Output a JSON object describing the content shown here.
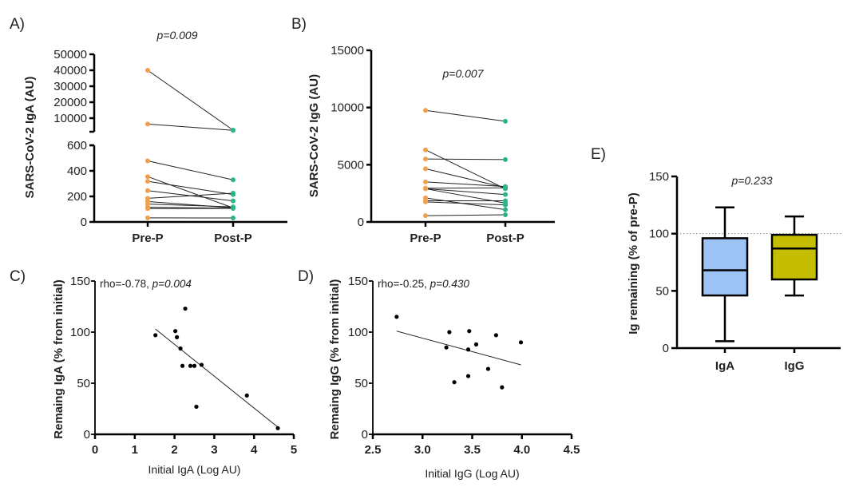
{
  "chart_data": [
    {
      "panel": "A)",
      "type": "line",
      "annotation": "p=0.009",
      "ylabel": "SARS-CoV-2 IgA (AU)",
      "categories": [
        "Pre-P",
        "Post-P"
      ],
      "y_axis_break": true,
      "y_ticks_lower": [
        "0",
        "200",
        "400",
        "600"
      ],
      "y_ticks_upper": [
        "10000",
        "20000",
        "30000",
        "40000",
        "50000"
      ],
      "pre": [
        40000,
        6300,
        478,
        355,
        318,
        245,
        185,
        160,
        140,
        115,
        105,
        32
      ],
      "post": [
        2500,
        2400,
        330,
        110,
        215,
        165,
        225,
        110,
        118,
        108,
        106,
        31
      ],
      "pre_color": "#f0a04b",
      "post_color": "#2db38a"
    },
    {
      "panel": "B)",
      "type": "line",
      "annotation": "p=0.007",
      "ylabel": "SARS-CoV-2 IgG (AU)",
      "categories": [
        "Pre-P",
        "Post-P"
      ],
      "ylim": [
        0,
        15000
      ],
      "y_ticks": [
        "0",
        "5000",
        "10000",
        "15000"
      ],
      "pre": [
        9750,
        6300,
        5500,
        4650,
        3500,
        2950,
        2900,
        2900,
        2100,
        1850,
        1750,
        550
      ],
      "post": [
        8800,
        2900,
        5450,
        3000,
        3100,
        2980,
        2400,
        1650,
        1070,
        1850,
        1490,
        630
      ],
      "pre_color": "#f0a04b",
      "post_color": "#2db38a"
    },
    {
      "panel": "C)",
      "type": "scatter",
      "annotation_plain": "rho=-0.78, ",
      "annotation_italic": "p=0.004",
      "xlabel": "Initial IgA  (Log AU)",
      "ylabel": "Remaing IgA  (% from initial)",
      "xlim": [
        0,
        5
      ],
      "ylim": [
        0,
        150
      ],
      "x_ticks": [
        "0",
        "1",
        "2",
        "3",
        "4",
        "5"
      ],
      "y_ticks": [
        "0",
        "50",
        "100",
        "150"
      ],
      "points": [
        [
          1.52,
          97
        ],
        [
          2.02,
          101
        ],
        [
          2.06,
          95
        ],
        [
          2.27,
          123
        ],
        [
          2.15,
          84
        ],
        [
          2.2,
          67
        ],
        [
          2.4,
          67
        ],
        [
          2.5,
          67
        ],
        [
          2.68,
          68
        ],
        [
          2.55,
          27
        ],
        [
          3.82,
          38
        ],
        [
          4.6,
          6
        ]
      ],
      "fit_line": [
        [
          1.52,
          103
        ],
        [
          4.6,
          7
        ]
      ]
    },
    {
      "panel": "D)",
      "type": "scatter",
      "annotation_plain": "rho=-0.25, ",
      "annotation_italic": "p=0.430",
      "xlabel": "Initial IgG  (Log AU)",
      "ylabel": "Remaing IgG  (% from initial)",
      "xlim": [
        2.5,
        4.5
      ],
      "ylim": [
        0,
        150
      ],
      "x_ticks": [
        "2.5",
        "3.0",
        "3.5",
        "4.0",
        "4.5"
      ],
      "y_ticks": [
        "0",
        "50",
        "100",
        "150"
      ],
      "points": [
        [
          2.74,
          115
        ],
        [
          3.27,
          100
        ],
        [
          3.47,
          101
        ],
        [
          3.24,
          85
        ],
        [
          3.46,
          83
        ],
        [
          3.54,
          88
        ],
        [
          3.74,
          97
        ],
        [
          3.99,
          90
        ],
        [
          3.66,
          64
        ],
        [
          3.46,
          57
        ],
        [
          3.32,
          51
        ],
        [
          3.8,
          46
        ]
      ],
      "fit_line": [
        [
          2.74,
          101
        ],
        [
          3.99,
          68
        ]
      ]
    },
    {
      "panel": "E)",
      "type": "box",
      "annotation": "p=0.233",
      "ylabel": "Ig remaining (% of pre-P)",
      "ylim": [
        0,
        150
      ],
      "y_ticks": [
        "0",
        "50",
        "100",
        "150"
      ],
      "reference_line": 100,
      "categories": [
        "IgA",
        "IgG"
      ],
      "boxes": [
        {
          "min": 6,
          "q1": 46,
          "median": 68,
          "q3": 96,
          "max": 123,
          "color": "#9dc3f5"
        },
        {
          "min": 46,
          "q1": 60,
          "median": 87,
          "q3": 99,
          "max": 115,
          "color": "#c4bd00"
        }
      ]
    }
  ]
}
